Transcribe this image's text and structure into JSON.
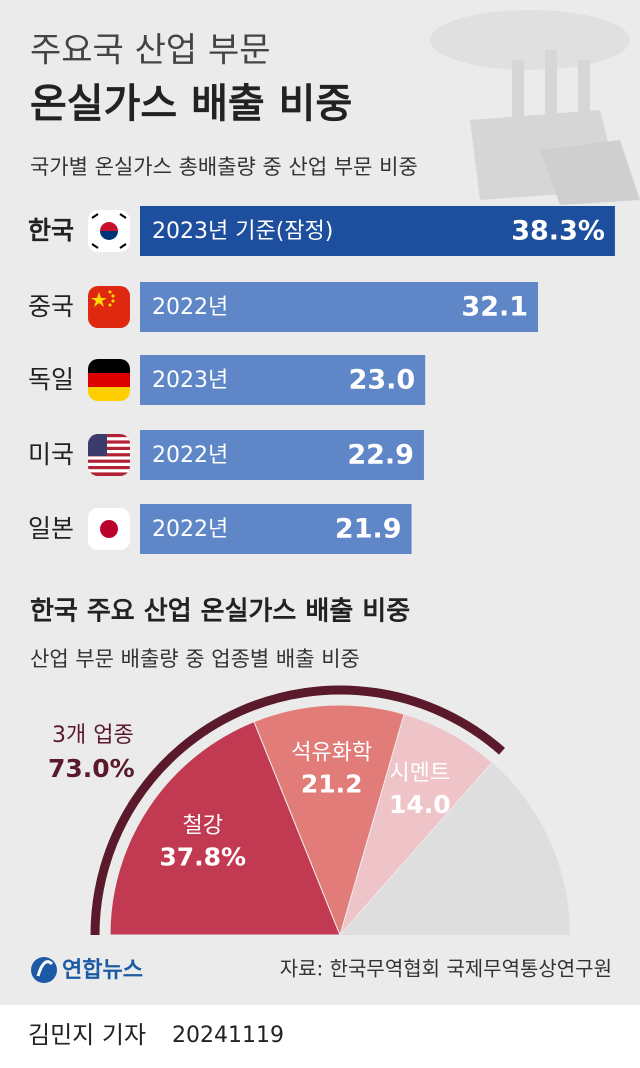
{
  "header": {
    "kicker": "주요국 산업 부문",
    "title": "온실가스 배출 비중"
  },
  "chart_data": [
    {
      "type": "bar",
      "subtitle": "국가별 온실가스 총배출량 중 산업 부문 비중",
      "categories": [
        "한국",
        "중국",
        "독일",
        "미국",
        "일본"
      ],
      "bar_notes": [
        "2023년 기준(잠정)",
        "2022년",
        "2023년",
        "2022년",
        "2022년"
      ],
      "values": [
        38.3,
        32.1,
        23.0,
        22.9,
        21.9
      ],
      "value_labels": [
        "38.3%",
        "32.1",
        "23.0",
        "22.9",
        "21.9"
      ],
      "colors": [
        "#1d4f9e",
        "#5f87c8",
        "#5f87c8",
        "#5f87c8",
        "#5f87c8"
      ]
    },
    {
      "type": "pie",
      "title": "한국 주요 산업 온실가스 배출 비중",
      "subtitle": "산업 부문 배출량 중 업종별 배출 비중",
      "categories": [
        "철강",
        "석유화학",
        "시멘트"
      ],
      "values": [
        37.8,
        21.2,
        14.0
      ],
      "value_labels": [
        "37.8%",
        "21.2",
        "14.0"
      ],
      "colors": [
        "#c23a52",
        "#e17c78",
        "#efc4c8"
      ],
      "total": {
        "label": "3개 업종",
        "value": 73.0,
        "value_label": "73.0%",
        "color": "#5a1a2b"
      }
    }
  ],
  "footer": {
    "logo": "연합뉴스",
    "source": "자료: 한국무역협회 국제무역통상연구원",
    "byline": "김민지 기자",
    "date": "20241119"
  }
}
